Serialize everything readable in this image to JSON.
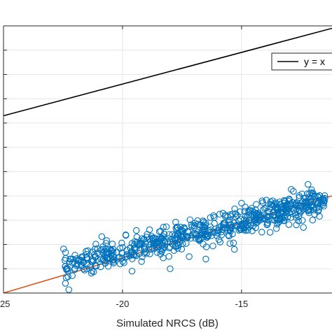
{
  "chart_data": {
    "type": "scatter",
    "title": "",
    "xlabel": "Simulated NRCS (dB)",
    "ylabel": "",
    "xlim": [
      -25,
      -11.2
    ],
    "ylim": [
      -33.5,
      -22.5
    ],
    "x_ticks": [
      -25,
      -20,
      -15
    ],
    "x_tick_labels": [
      "-25",
      "-20",
      "-15"
    ],
    "y_ticks": [
      -32.5,
      -31.5,
      -30.5,
      -29.5,
      -28.5,
      -27.5,
      -26.5,
      -25.5,
      -24.5,
      -23.5
    ],
    "grid": true,
    "legend": {
      "placement": "top-right",
      "entries": [
        {
          "label": "y = x",
          "color": "#000000"
        }
      ]
    },
    "colors": {
      "scatter": "#0072BD",
      "fit": "#D95319",
      "identity": "#000000",
      "grid": "#e6e6e6",
      "axis": "#262626"
    },
    "series": [
      {
        "kind": "line",
        "role": "identity",
        "legend_label": "y = x",
        "points": [
          [
            -25,
            -26.2
          ],
          [
            -11.2,
            -22.6
          ]
        ]
      },
      {
        "kind": "line",
        "role": "fit",
        "points": [
          [
            -25,
            -33.5
          ],
          [
            -11.2,
            -29.5
          ]
        ]
      },
      {
        "kind": "scatter",
        "role": "samples",
        "cloud": {
          "count": 620,
          "x_range": [
            -22.5,
            -11.5
          ],
          "trend": [
            [
              -22.5,
              -32.45
            ],
            [
              -11.5,
              -29.65
            ]
          ],
          "spread": 0.28
        },
        "points": [
          [
            -22.4,
            -32.4
          ],
          [
            -22.2,
            -32.1
          ],
          [
            -22.3,
            -32.6
          ],
          [
            -22.4,
            -33.1
          ],
          [
            -21.9,
            -32.3
          ],
          [
            -21.7,
            -32.0
          ],
          [
            -21.5,
            -32.5
          ],
          [
            -21.3,
            -32.2
          ],
          [
            -20.9,
            -32.1
          ],
          [
            -20.6,
            -32.4
          ],
          [
            -20.4,
            -32.0
          ],
          [
            -20.1,
            -32.3
          ],
          [
            -19.6,
            -32.6
          ],
          [
            -19.2,
            -32.2
          ],
          [
            -18.8,
            -31.7
          ],
          [
            -18.4,
            -31.9
          ],
          [
            -18.0,
            -31.6
          ],
          [
            -17.6,
            -31.4
          ],
          [
            -17.2,
            -32.0
          ],
          [
            -16.8,
            -31.3
          ],
          [
            -16.3,
            -31.0
          ],
          [
            -15.9,
            -31.4
          ],
          [
            -15.5,
            -30.8
          ],
          [
            -14.9,
            -30.9
          ],
          [
            -14.4,
            -30.4
          ],
          [
            -13.9,
            -30.6
          ],
          [
            -13.5,
            -30.1
          ],
          [
            -13.0,
            -30.2
          ],
          [
            -12.7,
            -30.4
          ],
          [
            -12.3,
            -29.9
          ],
          [
            -11.8,
            -29.8
          ],
          [
            -11.5,
            -29.6
          ],
          [
            -15.0,
            -29.8
          ],
          [
            -13.2,
            -29.7
          ],
          [
            -12.4,
            -30.8
          ],
          [
            -13.8,
            -31.0
          ],
          [
            -15.3,
            -31.7
          ],
          [
            -16.5,
            -32.1
          ],
          [
            -18.0,
            -32.5
          ],
          [
            -19.5,
            -31.5
          ]
        ]
      }
    ]
  }
}
